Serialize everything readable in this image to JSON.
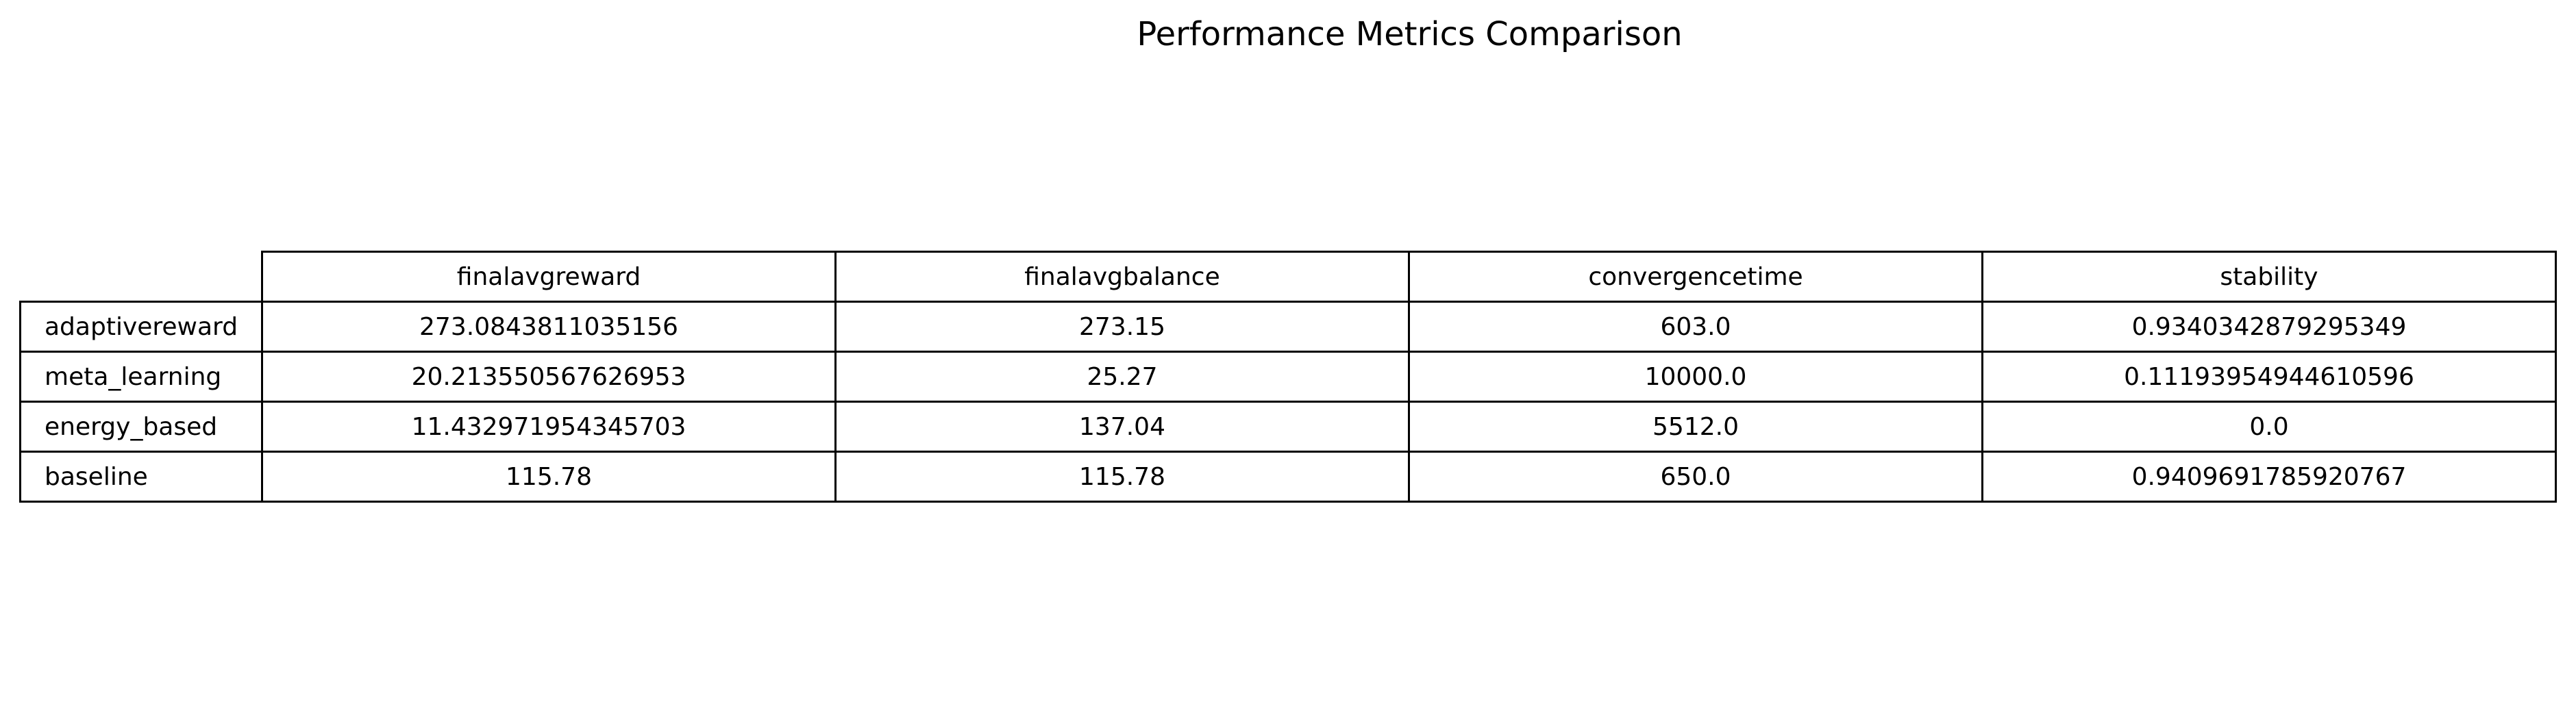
{
  "chart_data": {
    "type": "table",
    "title": "Performance Metrics Comparison",
    "columns": [
      "finalavgreward",
      "finalavgbalance",
      "convergencetime",
      "stability"
    ],
    "rows": [
      {
        "label": "adaptivereward",
        "values": [
          "273.0843811035156",
          "273.15",
          "603.0",
          "0.9340342879295349"
        ]
      },
      {
        "label": "meta_learning",
        "values": [
          "20.213550567626953",
          "25.27",
          "10000.0",
          "0.11193954944610596"
        ]
      },
      {
        "label": "energy_based",
        "values": [
          "11.432971954345703",
          "137.04",
          "5512.0",
          "0.0"
        ]
      },
      {
        "label": "baseline",
        "values": [
          "115.78",
          "115.78",
          "650.0",
          "0.9409691785920767"
        ]
      }
    ]
  }
}
